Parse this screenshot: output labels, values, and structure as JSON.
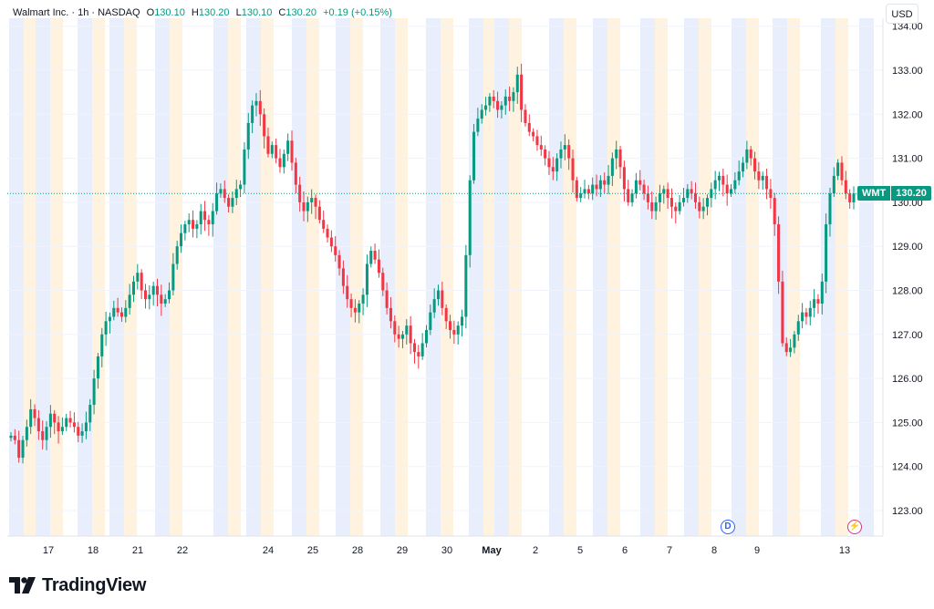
{
  "header": {
    "symbol_line": "Walmart Inc. · 1h · NASDAQ",
    "o_label": "O",
    "o_value": "130.10",
    "h_label": "H",
    "h_value": "130.20",
    "l_label": "L",
    "l_value": "130.10",
    "c_label": "C",
    "c_value": "130.20",
    "change": "+0.19 (+0.15%)"
  },
  "currency_button": "USD",
  "price_tag": {
    "symbol": "WMT",
    "price": "130.20"
  },
  "markers": {
    "dividend": "D",
    "earnings": "⚡"
  },
  "brand": {
    "name": "TradingView"
  },
  "colors": {
    "up": "#089981",
    "down": "#f23645",
    "premarket": "#fff3e0",
    "afterhours": "#e8eefb",
    "grid": "#f0f3fa"
  },
  "chart_data": {
    "type": "candlestick",
    "interval": "1h",
    "ylim": [
      122.5,
      134.0
    ],
    "y_ticks": [
      123.0,
      124.0,
      125.0,
      126.0,
      127.0,
      128.0,
      129.0,
      130.0,
      131.0,
      132.0,
      133.0,
      134.0
    ],
    "y_tick_labels": [
      "123.00",
      "124.00",
      "125.00",
      "126.00",
      "127.00",
      "128.00",
      "129.00",
      "130.00",
      "131.00",
      "132.00",
      "133.00",
      "134.00"
    ],
    "x_tick_labels": [
      "17",
      "18",
      "21",
      "22",
      "24",
      "25",
      "28",
      "29",
      "30",
      "May",
      "2",
      "5",
      "6",
      "7",
      "8",
      "9",
      "13"
    ],
    "last_price": 130.2,
    "closes": [
      124.7,
      124.6,
      124.2,
      124.6,
      124.9,
      125.3,
      125.1,
      124.8,
      124.6,
      124.9,
      125.2,
      125.0,
      124.8,
      124.9,
      125.1,
      125.0,
      124.9,
      124.7,
      124.8,
      125.0,
      125.4,
      126.0,
      126.5,
      127.0,
      127.3,
      127.4,
      127.6,
      127.5,
      127.4,
      127.6,
      127.9,
      128.2,
      128.4,
      128.0,
      127.8,
      127.9,
      128.1,
      127.9,
      127.7,
      127.8,
      128.0,
      128.6,
      129.0,
      129.3,
      129.5,
      129.6,
      129.4,
      129.5,
      129.8,
      129.6,
      129.5,
      129.8,
      130.2,
      130.3,
      130.1,
      129.9,
      130.1,
      130.3,
      130.4,
      131.2,
      131.8,
      132.2,
      132.3,
      132.0,
      131.5,
      131.1,
      131.3,
      131.0,
      130.8,
      131.1,
      131.4,
      130.9,
      130.4,
      130.0,
      129.8,
      130.0,
      130.1,
      129.9,
      129.6,
      129.4,
      129.2,
      129.0,
      128.8,
      128.5,
      128.1,
      127.8,
      127.6,
      127.5,
      127.7,
      127.9,
      128.6,
      128.9,
      128.7,
      128.4,
      128.0,
      127.6,
      127.3,
      127.0,
      126.9,
      127.0,
      127.2,
      126.8,
      126.6,
      126.5,
      126.8,
      127.1,
      127.5,
      127.8,
      128.0,
      127.6,
      127.3,
      127.1,
      127.0,
      127.2,
      127.4,
      128.8,
      130.5,
      131.6,
      131.9,
      132.1,
      132.2,
      132.4,
      132.3,
      132.1,
      132.2,
      132.4,
      132.3,
      132.5,
      132.9,
      132.1,
      131.8,
      131.6,
      131.5,
      131.3,
      131.2,
      131.0,
      130.8,
      130.7,
      131.0,
      131.2,
      131.3,
      131.0,
      130.5,
      130.1,
      130.2,
      130.3,
      130.2,
      130.4,
      130.3,
      130.5,
      130.4,
      130.6,
      131.0,
      131.2,
      130.8,
      130.3,
      130.0,
      130.2,
      130.5,
      130.4,
      130.2,
      130.0,
      129.8,
      130.0,
      130.2,
      130.3,
      130.1,
      129.9,
      129.8,
      130.0,
      130.1,
      130.3,
      130.2,
      130.0,
      129.8,
      129.9,
      130.1,
      130.3,
      130.5,
      130.6,
      130.4,
      130.2,
      130.3,
      130.5,
      130.7,
      130.9,
      131.2,
      131.0,
      130.7,
      130.5,
      130.6,
      130.3,
      130.1,
      129.5,
      128.2,
      126.8,
      126.6,
      126.7,
      127.0,
      127.3,
      127.5,
      127.4,
      127.6,
      127.8,
      127.7,
      128.2,
      129.5,
      130.2,
      130.6,
      130.9,
      130.5,
      130.2,
      130.0,
      130.2
    ]
  }
}
